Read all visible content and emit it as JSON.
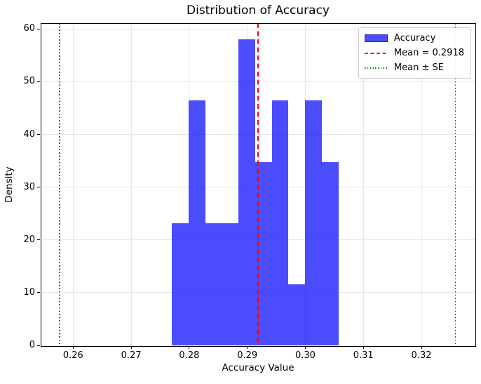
{
  "chart_data": {
    "type": "bar",
    "subtype": "histogram-density",
    "title": "Distribution of Accuracy",
    "xlabel": "Accuracy Value",
    "ylabel": "Density",
    "xlim": [
      0.2544,
      0.3293
    ],
    "ylim": [
      0,
      61.1
    ],
    "grid": true,
    "legend_position": "upper right",
    "xticks": [
      {
        "value": 0.26,
        "label": "0.26"
      },
      {
        "value": 0.27,
        "label": "0.27"
      },
      {
        "value": 0.28,
        "label": "0.28"
      },
      {
        "value": 0.29,
        "label": "0.29"
      },
      {
        "value": 0.3,
        "label": "0.30"
      },
      {
        "value": 0.31,
        "label": "0.31"
      },
      {
        "value": 0.32,
        "label": "0.32"
      }
    ],
    "yticks": [
      {
        "value": 0,
        "label": "0"
      },
      {
        "value": 10,
        "label": "10"
      },
      {
        "value": 20,
        "label": "20"
      },
      {
        "value": 30,
        "label": "30"
      },
      {
        "value": 40,
        "label": "40"
      },
      {
        "value": 50,
        "label": "50"
      },
      {
        "value": 60,
        "label": "60"
      }
    ],
    "histogram": {
      "series_name": "Accuracy",
      "bin_start": 0.277,
      "bin_width": 0.00287,
      "densities": [
        23.2,
        46.5,
        23.2,
        23.2,
        58.1,
        34.8,
        46.5,
        11.6,
        46.5,
        34.8
      ]
    },
    "mean_line": {
      "value": 0.2918,
      "style": "dashed"
    },
    "se_lines": {
      "values": [
        0.2577,
        0.3259
      ],
      "style": "dotted"
    },
    "colors": {
      "bar_fill": "rgba(0,0,255,0.7)",
      "mean_line": "#ff0000",
      "se_line": "#008000",
      "grid": "#e7e7e7",
      "spine": "#000000",
      "background": "#ffffff"
    },
    "legend": {
      "entries": [
        {
          "label": "Accuracy",
          "swatch": "patch"
        },
        {
          "label": "Mean = 0.2918",
          "swatch": "dashed"
        },
        {
          "label": "Mean ± SE",
          "swatch": "dotted"
        }
      ]
    }
  }
}
